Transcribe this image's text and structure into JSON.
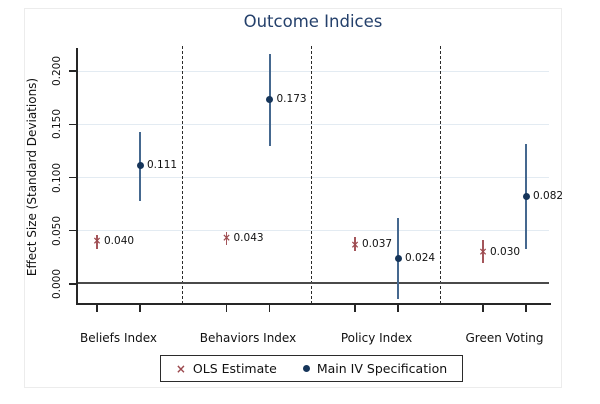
{
  "chart_data": {
    "type": "scatter",
    "title": "Outcome Indices",
    "ylabel": "Effect Size (Standard Deviations)",
    "ylim": [
      -0.02,
      0.222
    ],
    "yticks": [
      0.0,
      0.05,
      0.1,
      0.15,
      0.2
    ],
    "ytick_labels": [
      "0.000",
      "0.050",
      "0.100",
      "0.150",
      "0.200"
    ],
    "grid": "horizontal light gridlines at ticks, dark horizontal line at zero",
    "separators": "dashed vertical lines between categories",
    "legend_position": "bottom center, boxed",
    "categories": [
      "Beliefs Index",
      "Behaviors Index",
      "Policy Index",
      "Green Voting"
    ],
    "series": [
      {
        "name": "OLS Estimate",
        "marker": "x",
        "marker_glyph": "×",
        "color": "#9c494e",
        "values": [
          0.04,
          0.043,
          0.037,
          0.03
        ],
        "ci_low": [
          0.033,
          0.037,
          0.031,
          0.02
        ],
        "ci_high": [
          0.046,
          0.049,
          0.044,
          0.041
        ],
        "labels": [
          "0.040",
          "0.043",
          "0.037",
          "0.030"
        ]
      },
      {
        "name": "Main IV Specification",
        "marker": "dot",
        "marker_glyph": "●",
        "color": "#16355a",
        "values": [
          0.111,
          0.173,
          0.024,
          0.082
        ],
        "ci_low": [
          0.078,
          0.13,
          -0.014,
          0.033
        ],
        "ci_high": [
          0.143,
          0.216,
          0.062,
          0.131
        ],
        "labels": [
          "0.111",
          "0.173",
          "0.024",
          "0.082"
        ]
      }
    ],
    "colors": {
      "title": "#24406b",
      "iv_bar": "#45688f",
      "iv_dot": "#16355a",
      "ols": "#9c494e",
      "gridline": "#e3ebf2",
      "zero_line": "#4a4a4a",
      "axis": "#262626"
    }
  }
}
